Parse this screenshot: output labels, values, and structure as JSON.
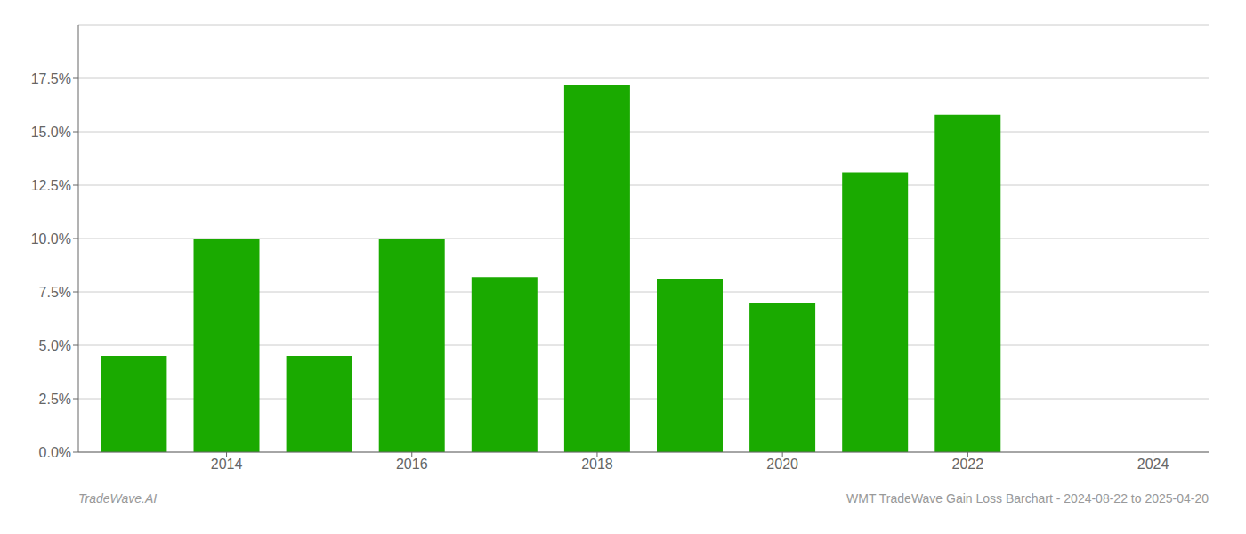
{
  "chart_data": {
    "type": "bar",
    "x": [
      2013,
      2014,
      2015,
      2016,
      2017,
      2018,
      2019,
      2020,
      2021,
      2022
    ],
    "values": [
      0.045,
      0.1,
      0.045,
      0.1,
      0.082,
      0.172,
      0.081,
      0.07,
      0.131,
      0.158
    ],
    "color": "#1aaa00",
    "xlim": [
      2012.4,
      2024.6
    ],
    "xticks": [
      2014,
      2016,
      2018,
      2020,
      2022,
      2024
    ],
    "ylim": [
      0,
      0.2
    ],
    "yticks": [
      {
        "value": 0.0,
        "label": "0.0%"
      },
      {
        "value": 0.025,
        "label": "2.5%"
      },
      {
        "value": 0.05,
        "label": "5.0%"
      },
      {
        "value": 0.075,
        "label": "7.5%"
      },
      {
        "value": 0.1,
        "label": "10.0%"
      },
      {
        "value": 0.125,
        "label": "12.5%"
      },
      {
        "value": 0.15,
        "label": "15.0%"
      },
      {
        "value": 0.175,
        "label": "17.5%"
      }
    ],
    "grid": true,
    "annotations": [
      "TradeWave.AI",
      "WMT TradeWave Gain Loss Barchart - 2024-08-22 to 2025-04-20"
    ]
  }
}
